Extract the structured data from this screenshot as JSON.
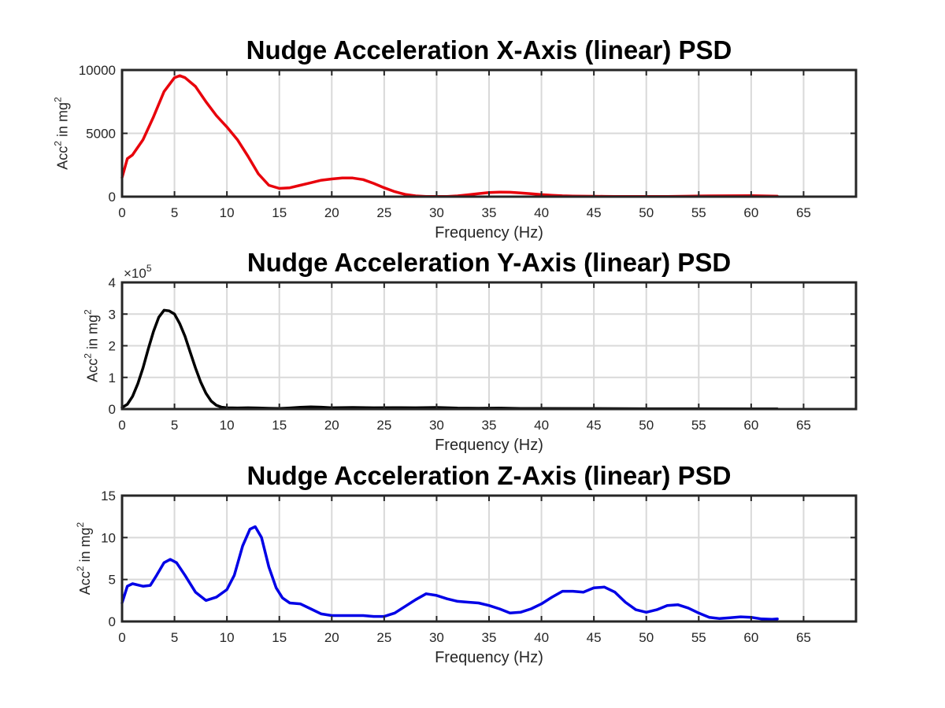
{
  "chart_data": [
    {
      "type": "line",
      "title": "Nudge Acceleration X-Axis (linear) PSD",
      "xlabel": "Frequency (Hz)",
      "ylabel": "Acc",
      "ylabel_sup": "2",
      "ylabel_mid": " in mg",
      "ylabel_sup2": "2",
      "xlim": [
        0,
        70
      ],
      "ylim": [
        0,
        10000
      ],
      "xticks": [
        0,
        5,
        10,
        15,
        20,
        25,
        30,
        35,
        40,
        45,
        50,
        55,
        60,
        65
      ],
      "yticks": [
        0,
        5000,
        10000
      ],
      "ytick_labels": [
        "0",
        "5000",
        "10000"
      ],
      "grid": true,
      "series": [
        {
          "color": "#e8000b",
          "x": [
            0,
            0.5,
            1,
            2,
            3,
            4,
            5,
            5.5,
            6,
            7,
            8,
            9,
            10,
            11,
            12,
            13,
            14,
            15,
            16,
            17,
            18,
            19,
            20,
            21,
            22,
            23,
            24,
            25,
            26,
            27,
            28,
            29,
            30,
            31,
            32,
            33,
            34,
            35,
            36,
            37,
            38,
            39,
            40,
            41,
            42,
            43,
            44,
            45,
            46,
            47,
            48,
            49,
            50,
            52,
            54,
            56,
            58,
            60,
            62.5
          ],
          "y": [
            1500,
            3000,
            3300,
            4500,
            6300,
            8300,
            9400,
            9550,
            9400,
            8700,
            7500,
            6400,
            5500,
            4500,
            3200,
            1800,
            900,
            650,
            700,
            900,
            1100,
            1300,
            1400,
            1480,
            1470,
            1350,
            1050,
            700,
            400,
            180,
            60,
            20,
            10,
            20,
            60,
            150,
            240,
            320,
            360,
            350,
            300,
            230,
            160,
            110,
            70,
            50,
            40,
            30,
            25,
            20,
            15,
            10,
            10,
            20,
            40,
            60,
            70,
            80,
            40
          ]
        }
      ]
    },
    {
      "type": "line",
      "title": "Nudge Acceleration Y-Axis (linear) PSD",
      "xlabel": "Frequency (Hz)",
      "ylabel": "Acc",
      "ylabel_sup": "2",
      "ylabel_mid": " in mg",
      "ylabel_sup2": "2",
      "xlim": [
        0,
        70
      ],
      "ylim": [
        0,
        400000
      ],
      "xticks": [
        0,
        5,
        10,
        15,
        20,
        25,
        30,
        35,
        40,
        45,
        50,
        55,
        60,
        65
      ],
      "yticks": [
        0,
        100000,
        200000,
        300000,
        400000
      ],
      "ytick_labels": [
        "0",
        "1",
        "2",
        "3",
        "4"
      ],
      "exponent_prefix": "×10",
      "exponent": "5",
      "grid": true,
      "series": [
        {
          "color": "#000000",
          "x": [
            0,
            0.5,
            1,
            1.5,
            2,
            2.5,
            3,
            3.5,
            4,
            4.5,
            5,
            5.5,
            6,
            6.5,
            7,
            7.5,
            8,
            8.5,
            9,
            9.5,
            10,
            11,
            12,
            13,
            14,
            15,
            16,
            17,
            18,
            19,
            20,
            22,
            24,
            26,
            28,
            30,
            32,
            34,
            36,
            38,
            40,
            45,
            50,
            55,
            60,
            62.5
          ],
          "y": [
            5000,
            15000,
            40000,
            80000,
            130000,
            190000,
            245000,
            290000,
            312000,
            310000,
            300000,
            270000,
            230000,
            180000,
            130000,
            85000,
            50000,
            25000,
            12000,
            6000,
            4000,
            3500,
            4000,
            3500,
            2500,
            2000,
            3500,
            5500,
            7000,
            6000,
            4000,
            5000,
            4000,
            4500,
            4000,
            5000,
            3000,
            2500,
            3000,
            2000,
            2000,
            1500,
            1000,
            1000,
            800,
            500
          ]
        }
      ]
    },
    {
      "type": "line",
      "title": "Nudge Acceleration Z-Axis (linear) PSD",
      "xlabel": "Frequency (Hz)",
      "ylabel": "Acc",
      "ylabel_sup": "2",
      "ylabel_mid": " in mg",
      "ylabel_sup2": "2",
      "xlim": [
        0,
        70
      ],
      "ylim": [
        0,
        15
      ],
      "xticks": [
        0,
        5,
        10,
        15,
        20,
        25,
        30,
        35,
        40,
        45,
        50,
        55,
        60,
        65
      ],
      "yticks": [
        0,
        5,
        10,
        15
      ],
      "ytick_labels": [
        "0",
        "5",
        "10",
        "15"
      ],
      "grid": true,
      "series": [
        {
          "color": "#0000e6",
          "x": [
            0,
            0.5,
            1,
            2,
            2.7,
            3.3,
            4,
            4.6,
            5.2,
            6,
            7,
            8,
            9,
            10,
            10.7,
            11.5,
            12.2,
            12.7,
            13.3,
            14,
            14.7,
            15.3,
            16,
            17,
            18,
            19,
            20,
            21,
            22,
            23,
            24,
            25,
            26,
            27,
            28,
            29,
            30,
            31,
            32,
            33,
            34,
            35,
            36,
            37,
            38,
            39,
            40,
            41,
            42,
            43,
            44,
            45,
            46,
            47,
            48,
            49,
            50,
            51,
            52,
            53,
            54,
            55,
            56,
            57,
            58,
            59,
            60,
            61,
            62,
            62.5
          ],
          "y": [
            2.2,
            4.2,
            4.5,
            4.2,
            4.3,
            5.5,
            7,
            7.4,
            7,
            5.5,
            3.5,
            2.5,
            2.9,
            3.8,
            5.5,
            9,
            11,
            11.3,
            10,
            6.5,
            4,
            2.8,
            2.2,
            2.1,
            1.5,
            0.9,
            0.7,
            0.7,
            0.7,
            0.7,
            0.6,
            0.6,
            1,
            1.8,
            2.6,
            3.3,
            3.1,
            2.7,
            2.4,
            2.3,
            2.2,
            1.9,
            1.5,
            1.0,
            1.1,
            1.5,
            2.1,
            2.9,
            3.6,
            3.6,
            3.5,
            4.0,
            4.1,
            3.5,
            2.3,
            1.4,
            1.1,
            1.4,
            1.9,
            2.0,
            1.6,
            1.0,
            0.5,
            0.35,
            0.45,
            0.55,
            0.5,
            0.3,
            0.25,
            0.3
          ]
        }
      ]
    }
  ]
}
